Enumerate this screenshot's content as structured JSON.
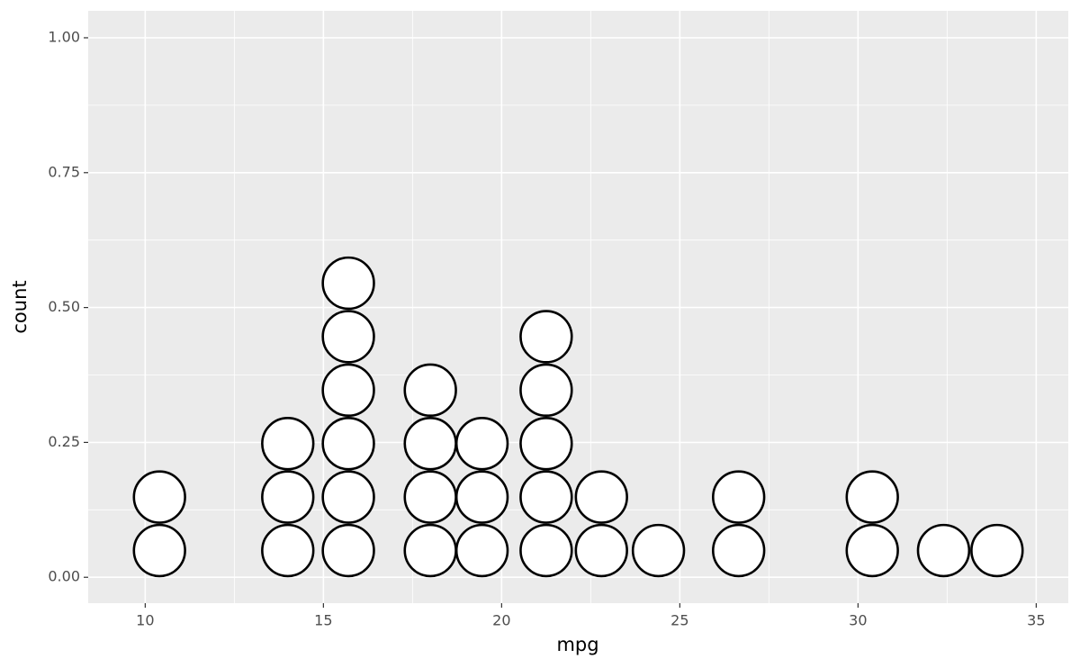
{
  "chart_data": {
    "type": "dotplot",
    "x_label": "mpg",
    "y_label": "count",
    "x": [
      10.4,
      14.0,
      15.7,
      18.0,
      19.45,
      21.25,
      22.8,
      24.4,
      26.65,
      30.4,
      32.4,
      33.9
    ],
    "counts": [
      2,
      3,
      6,
      4,
      3,
      5,
      2,
      1,
      2,
      2,
      1,
      1
    ],
    "binwidth": 1.5,
    "fill": "#ffffff",
    "stroke": "#000000",
    "xlim": [
      8.4,
      35.9
    ],
    "xticks": [
      10,
      15,
      20,
      25,
      30,
      35
    ],
    "ylim": [
      -0.048,
      1.05
    ],
    "yticks": [
      {
        "value": 0,
        "label": "0.00"
      },
      {
        "value": 0.25,
        "label": "0.25"
      },
      {
        "value": 0.5,
        "label": "0.50"
      },
      {
        "value": 0.75,
        "label": "0.75"
      },
      {
        "value": 1,
        "label": "1.00"
      }
    ],
    "grid": true
  }
}
